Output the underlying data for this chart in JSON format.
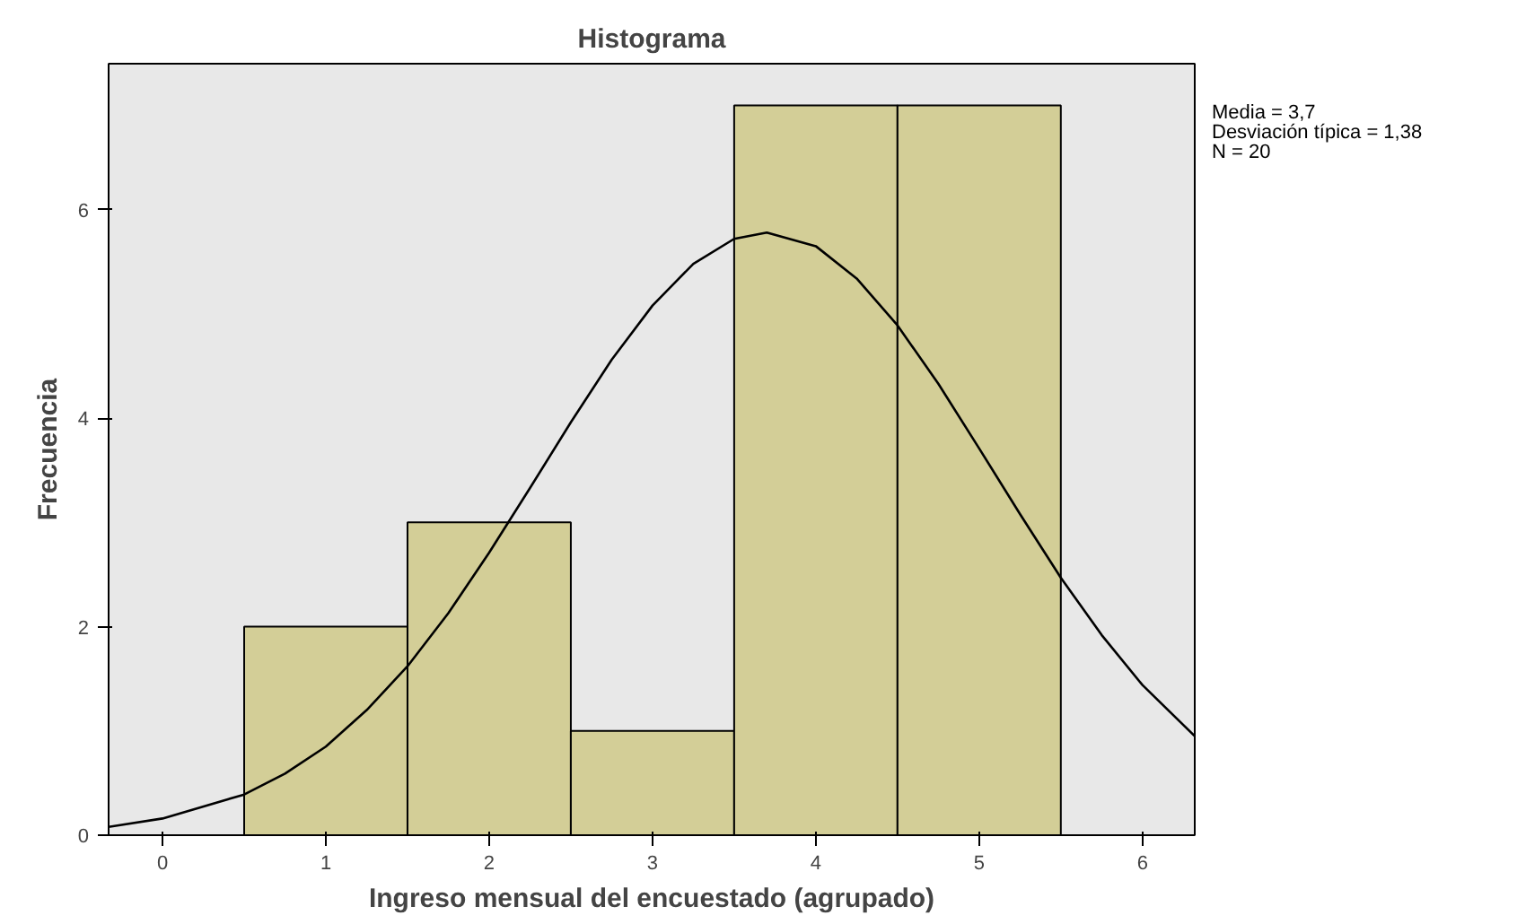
{
  "chart_data": {
    "type": "histogram",
    "title": "Histograma",
    "xlabel": "Ingreso mensual del encuestado (agrupado)",
    "ylabel": "Frecuencia",
    "bins": [
      0.5,
      1.5,
      2.5,
      3.5,
      4.5,
      5.5
    ],
    "values": [
      2,
      3,
      1,
      7,
      7
    ],
    "color": "#d3ce97",
    "series": [
      {
        "type": "line",
        "color": "#000000",
        "x": [
          -0.33,
          0,
          0.5,
          0.75,
          1,
          1.25,
          1.5,
          1.75,
          2,
          2.25,
          2.5,
          2.75,
          3,
          3.25,
          3.5,
          3.7,
          4,
          4.25,
          4.5,
          4.75,
          5,
          5.25,
          5.5,
          5.75,
          6,
          6.32
        ],
        "values": [
          0.08,
          0.16,
          0.39,
          0.59,
          0.85,
          1.2,
          1.62,
          2.13,
          2.71,
          3.33,
          3.96,
          4.56,
          5.08,
          5.48,
          5.72,
          5.78,
          5.65,
          5.34,
          4.89,
          4.33,
          3.71,
          3.08,
          2.47,
          1.92,
          1.44,
          0.95
        ]
      }
    ],
    "xlim": [
      -0.33,
      6.32
    ],
    "ylim": [
      0,
      7.4
    ],
    "xticks": [
      0,
      1,
      2,
      3,
      4,
      5,
      6
    ],
    "yticks": [
      0,
      2,
      4,
      6
    ],
    "grid": false,
    "annotations": [
      "Media = 3,7",
      "Desviación típica = 1,38",
      "N = 20"
    ]
  }
}
